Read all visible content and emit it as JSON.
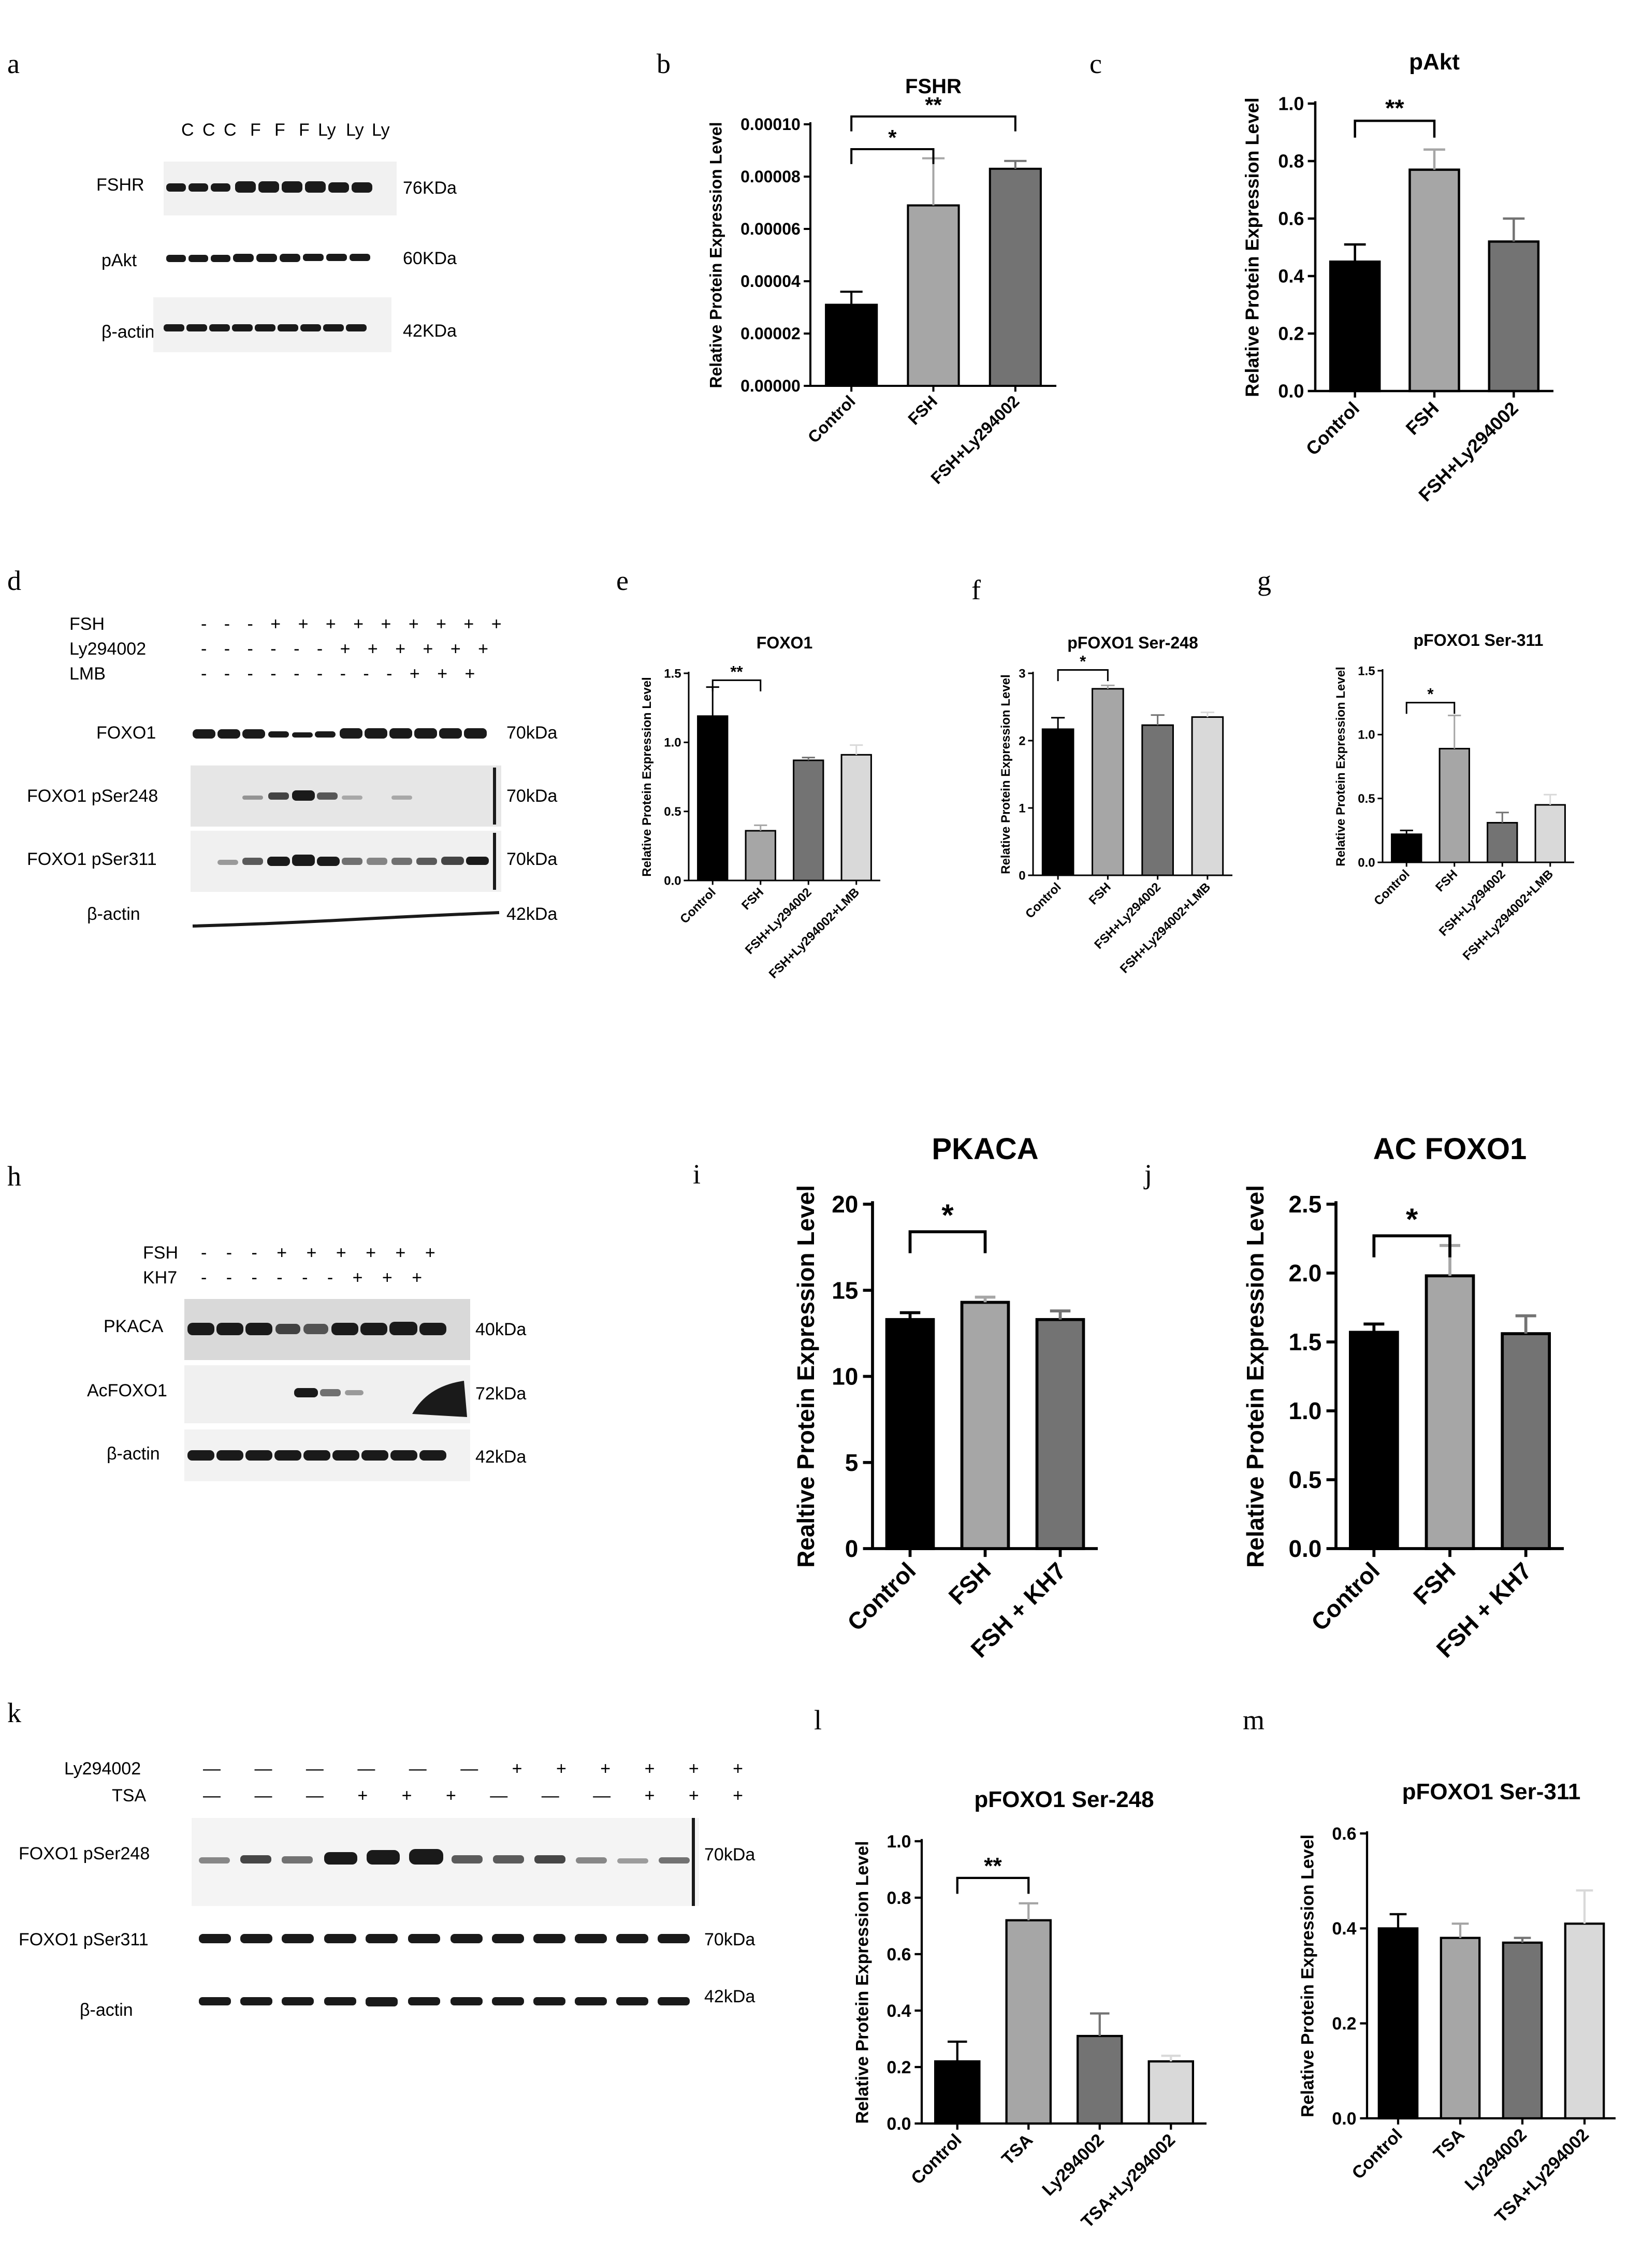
{
  "figure": {
    "panel_letters": [
      "a",
      "b",
      "c",
      "d",
      "e",
      "f",
      "g",
      "h",
      "i",
      "j",
      "k",
      "l",
      "m"
    ]
  },
  "blots": {
    "a": {
      "lane_labels": [
        "C",
        "C",
        "C",
        "F",
        "F",
        "F",
        "Ly",
        "Ly",
        "Ly"
      ],
      "rows": [
        {
          "label": "FSHR",
          "kda": "76KDa"
        },
        {
          "label": "pAkt",
          "kda": "60KDa"
        },
        {
          "label": "β-actin",
          "kda": "42KDa"
        }
      ]
    },
    "d": {
      "treatments": [
        {
          "label": "FSH",
          "signs": "- - - + + + + + + + + +"
        },
        {
          "label": "Ly294002",
          "signs": "- - - - - - + + + + + +"
        },
        {
          "label": "LMB",
          "signs": "- - - - - - - - - + + +"
        }
      ],
      "rows": [
        {
          "label": "FOXO1",
          "kda": "70kDa"
        },
        {
          "label": "FOXO1 pSer248",
          "kda": "70kDa"
        },
        {
          "label": "FOXO1 pSer311",
          "kda": "70kDa"
        },
        {
          "label": "β-actin",
          "kda": "42kDa"
        }
      ]
    },
    "h": {
      "treatments": [
        {
          "label": "FSH",
          "signs": "- - - + + + + + +"
        },
        {
          "label": "KH7",
          "signs": "- - - - - - + + +"
        }
      ],
      "rows": [
        {
          "label": "PKACA",
          "kda": "40kDa"
        },
        {
          "label": "AcFOXO1",
          "kda": "72kDa"
        },
        {
          "label": "β-actin",
          "kda": "42kDa"
        }
      ]
    },
    "k": {
      "treatments": [
        {
          "label": "Ly294002",
          "signs": "— — — — — — + + + + + +"
        },
        {
          "label": "TSA",
          "signs": "— — — + + + — — — + + +"
        }
      ],
      "rows": [
        {
          "label": "FOXO1 pSer248",
          "kda": "70kDa"
        },
        {
          "label": "FOXO1 pSer311",
          "kda": "70kDa"
        },
        {
          "label": "β-actin",
          "kda": "42kDa"
        }
      ]
    }
  },
  "chart_data": [
    {
      "id": "b",
      "type": "bar",
      "title": "FSHR",
      "ylabel": "Relative Protein Expression Level",
      "categories": [
        "Control",
        "FSH",
        "FSH+Ly294002"
      ],
      "values": [
        3.1e-05,
        6.9e-05,
        8.3e-05
      ],
      "errors": [
        5e-06,
        1.8e-05,
        3e-06
      ],
      "ylim": [
        0,
        0.0001
      ],
      "ticks": [
        "0.00000",
        "0.00002",
        "0.00004",
        "0.00006",
        "0.00008",
        "0.00010"
      ],
      "tick_values": [
        0,
        2e-05,
        4e-05,
        6e-05,
        8e-05,
        0.0001
      ],
      "colors": [
        "#000000",
        "#a6a6a6",
        "#737373"
      ],
      "sig": [
        {
          "from": 0,
          "to": 1,
          "label": "*",
          "y": 9.05e-05
        },
        {
          "from": 0,
          "to": 2,
          "label": "**",
          "y": 0.000103
        }
      ]
    },
    {
      "id": "c",
      "type": "bar",
      "title": "pAkt",
      "ylabel": "Relative Protein Expression Level",
      "categories": [
        "Control",
        "FSH",
        "FSH+Ly294002"
      ],
      "values": [
        0.45,
        0.77,
        0.52
      ],
      "errors": [
        0.06,
        0.07,
        0.08
      ],
      "ylim": [
        0,
        1.0
      ],
      "ticks": [
        "0.0",
        "0.2",
        "0.4",
        "0.6",
        "0.8",
        "1.0"
      ],
      "tick_values": [
        0,
        0.2,
        0.4,
        0.6,
        0.8,
        1.0
      ],
      "colors": [
        "#000000",
        "#a6a6a6",
        "#737373"
      ],
      "sig": [
        {
          "from": 0,
          "to": 1,
          "label": "**",
          "y": 0.94
        }
      ]
    },
    {
      "id": "e",
      "type": "bar",
      "title": "FOXO1",
      "ylabel": "Relative Protein Expression Level",
      "categories": [
        "Control",
        "FSH",
        "FSH+Ly294002",
        "FSH+Ly294002+LMB"
      ],
      "values": [
        1.19,
        0.36,
        0.87,
        0.91
      ],
      "errors": [
        0.21,
        0.04,
        0.02,
        0.07
      ],
      "ylim": [
        0,
        1.5
      ],
      "ticks": [
        "0.0",
        "0.5",
        "1.0",
        "1.5"
      ],
      "tick_values": [
        0,
        0.5,
        1.0,
        1.5
      ],
      "colors": [
        "#000000",
        "#a6a6a6",
        "#737373",
        "#d9d9d9"
      ],
      "sig": [
        {
          "from": 0,
          "to": 1,
          "label": "**",
          "y": 1.45
        }
      ]
    },
    {
      "id": "f",
      "type": "bar",
      "title": "pFOXO1 Ser-248",
      "ylabel": "Relative Protein Expression Level",
      "categories": [
        "Control",
        "FSH",
        "FSH+Ly294002",
        "FSH+Ly294002+LMB"
      ],
      "values": [
        2.17,
        2.77,
        2.23,
        2.35
      ],
      "errors": [
        0.17,
        0.05,
        0.15,
        0.07
      ],
      "ylim": [
        0,
        3
      ],
      "ticks": [
        "0",
        "1",
        "2",
        "3"
      ],
      "tick_values": [
        0,
        1,
        2,
        3
      ],
      "colors": [
        "#000000",
        "#a6a6a6",
        "#737373",
        "#d9d9d9"
      ],
      "sig": [
        {
          "from": 0,
          "to": 1,
          "label": "*",
          "y": 3.05
        }
      ]
    },
    {
      "id": "g",
      "type": "bar",
      "title": "pFOXO1 Ser-311",
      "ylabel": "Relative Protein Expression Level",
      "categories": [
        "Control",
        "FSH",
        "FSH+Ly294002",
        "FSH+Ly294002+LMB"
      ],
      "values": [
        0.22,
        0.89,
        0.31,
        0.45
      ],
      "errors": [
        0.03,
        0.26,
        0.08,
        0.08
      ],
      "ylim": [
        0,
        1.5
      ],
      "ticks": [
        "0.0",
        "0.5",
        "1.0",
        "1.5"
      ],
      "tick_values": [
        0,
        0.5,
        1.0,
        1.5
      ],
      "colors": [
        "#000000",
        "#a6a6a6",
        "#737373",
        "#d9d9d9"
      ],
      "sig": [
        {
          "from": 0,
          "to": 1,
          "label": "*",
          "y": 1.25
        }
      ]
    },
    {
      "id": "i",
      "type": "bar",
      "title": "PKACA",
      "ylabel": "Realtive Protein Expression Level",
      "categories": [
        "Control",
        "FSH",
        "FSH + KH7"
      ],
      "values": [
        13.3,
        14.3,
        13.3
      ],
      "errors": [
        0.4,
        0.3,
        0.5
      ],
      "ylim": [
        0,
        20
      ],
      "ticks": [
        "0",
        "5",
        "10",
        "15",
        "20"
      ],
      "tick_values": [
        0,
        5,
        10,
        15,
        20
      ],
      "colors": [
        "#000000",
        "#a6a6a6",
        "#737373"
      ],
      "sig": [
        {
          "from": 0,
          "to": 1,
          "label": "*",
          "y": 18.4
        }
      ],
      "large": true
    },
    {
      "id": "j",
      "type": "bar",
      "title": "AC FOXO1",
      "ylabel": "Relative Protein Expression Level",
      "categories": [
        "Control",
        "FSH",
        "FSH + KH7"
      ],
      "values": [
        1.57,
        1.98,
        1.56
      ],
      "errors": [
        0.06,
        0.22,
        0.13
      ],
      "ylim": [
        0,
        2.5
      ],
      "ticks": [
        "0.0",
        "0.5",
        "1.0",
        "1.5",
        "2.0",
        "2.5"
      ],
      "tick_values": [
        0,
        0.5,
        1.0,
        1.5,
        2.0,
        2.5
      ],
      "colors": [
        "#000000",
        "#a6a6a6",
        "#737373"
      ],
      "sig": [
        {
          "from": 0,
          "to": 1,
          "label": "*",
          "y": 2.27
        }
      ],
      "large": true
    },
    {
      "id": "l",
      "type": "bar",
      "title": "pFOXO1 Ser-248",
      "ylabel": "Relative Protein Expression Level",
      "categories": [
        "Control",
        "TSA",
        "Ly294002",
        "TSA+Ly294002"
      ],
      "values": [
        0.22,
        0.72,
        0.31,
        0.22
      ],
      "errors": [
        0.07,
        0.06,
        0.08,
        0.02
      ],
      "ylim": [
        0,
        1.0
      ],
      "ticks": [
        "0.0",
        "0.2",
        "0.4",
        "0.6",
        "0.8",
        "1.0"
      ],
      "tick_values": [
        0,
        0.2,
        0.4,
        0.6,
        0.8,
        1.0
      ],
      "colors": [
        "#000000",
        "#a6a6a6",
        "#737373",
        "#d9d9d9"
      ],
      "sig": [
        {
          "from": 0,
          "to": 1,
          "label": "**",
          "y": 0.87
        }
      ]
    },
    {
      "id": "m",
      "type": "bar",
      "title": "pFOXO1 Ser-311",
      "ylabel": "Relative Protein Expression Level",
      "categories": [
        "Control",
        "TSA",
        "Ly294002",
        "TSA+Ly294002"
      ],
      "values": [
        0.4,
        0.38,
        0.37,
        0.41
      ],
      "errors": [
        0.03,
        0.03,
        0.01,
        0.07
      ],
      "ylim": [
        0,
        0.6
      ],
      "ticks": [
        "0.0",
        "0.2",
        "0.4",
        "0.6"
      ],
      "tick_values": [
        0,
        0.2,
        0.4,
        0.6
      ],
      "colors": [
        "#000000",
        "#a6a6a6",
        "#737373",
        "#d9d9d9"
      ],
      "sig": []
    }
  ]
}
